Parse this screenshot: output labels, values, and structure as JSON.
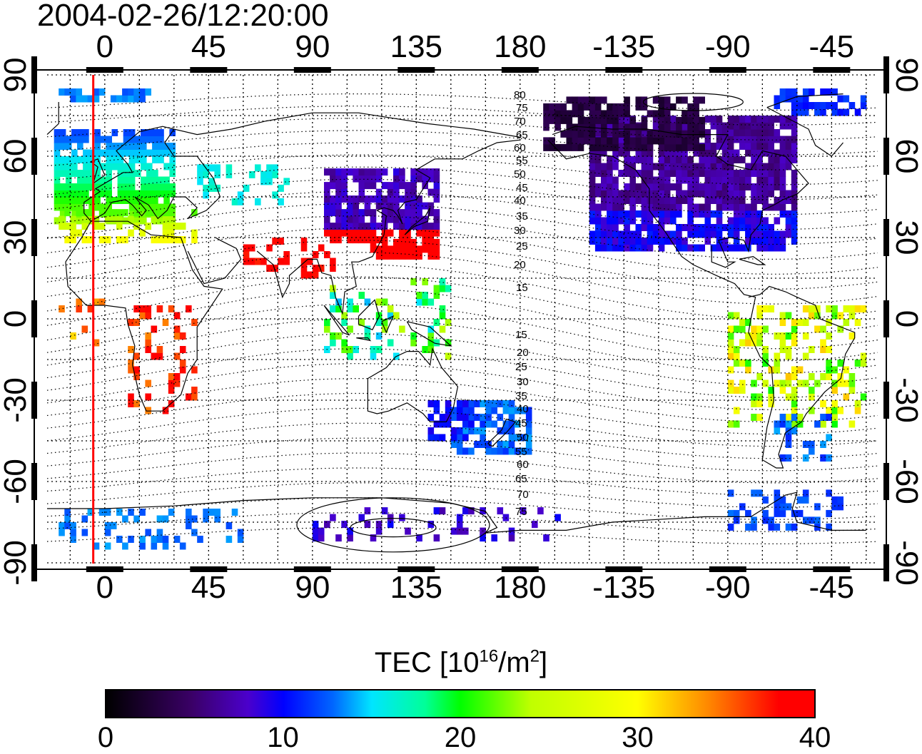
{
  "title": "2004-02-26/12:20:00",
  "lon_ticks_top": [
    "0",
    "45",
    "90",
    "135",
    "180",
    "-135",
    "-90",
    "-45"
  ],
  "lon_ticks_bottom": [
    "0",
    "45",
    "90",
    "135",
    "180",
    "-135",
    "-90",
    "-45"
  ],
  "lat_ticks_left": [
    "90",
    "60",
    "30",
    "0",
    "-30",
    "-60",
    "-90"
  ],
  "lat_ticks_right": [
    "90",
    "60",
    "30",
    "0",
    "-30",
    "-60",
    "-90"
  ],
  "colorbar": {
    "label_prefix": "TEC  [10",
    "label_exp1": "16",
    "label_mid": "/m",
    "label_exp2": "2",
    "label_suffix": "]",
    "ticks": [
      "0",
      "10",
      "20",
      "30",
      "40"
    ],
    "min": 0,
    "max": 40
  },
  "contour_labels_north": [
    "80",
    "75",
    "70",
    "65",
    "60",
    "55",
    "50",
    "45",
    "40",
    "35",
    "30",
    "25",
    "20",
    "15"
  ],
  "contour_labels_south": [
    "15",
    "20",
    "25",
    "30",
    "35",
    "40",
    "45",
    "50",
    "55",
    "60",
    "65",
    "70",
    "75"
  ],
  "colors": {
    "red_line": "#ff0000",
    "grid": "#000000"
  },
  "map": {
    "lon_min": -25,
    "lon_max": 335,
    "lat_min": -90,
    "lat_max": 90,
    "marker_lon": -5
  }
}
